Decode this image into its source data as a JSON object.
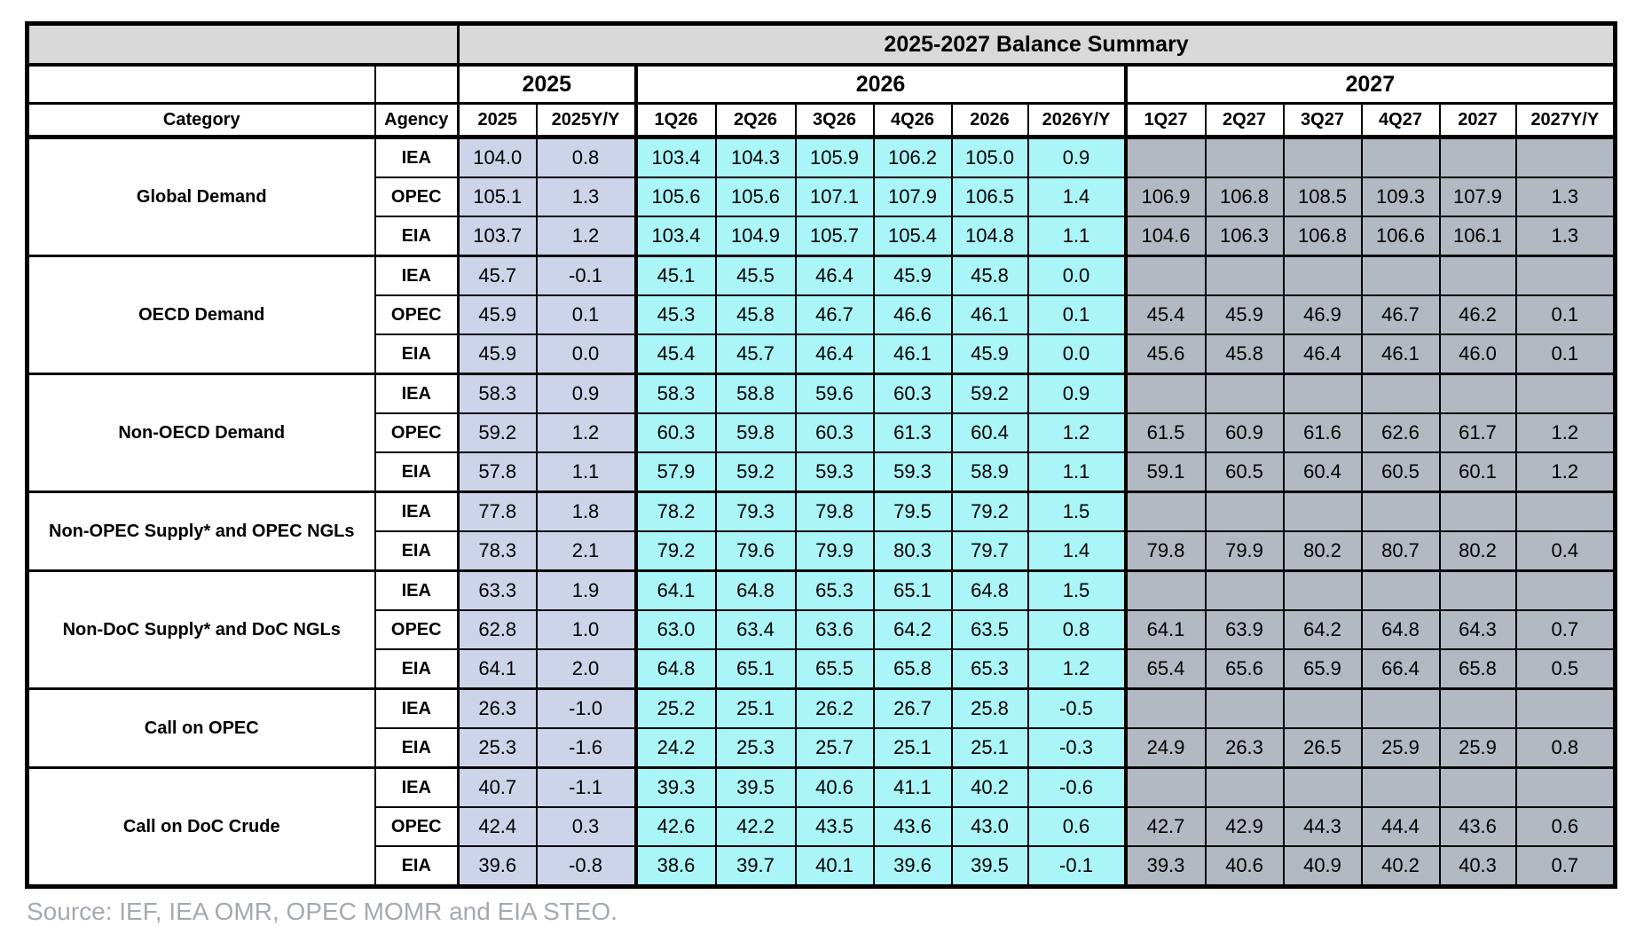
{
  "table": {
    "title": "2025-2027 Balance Summary",
    "year_groups": [
      {
        "label": "2025",
        "span": 2
      },
      {
        "label": "2026",
        "span": 6
      },
      {
        "label": "2027",
        "span": 6
      }
    ],
    "columns": [
      "Category",
      "Agency",
      "2025",
      "2025Y/Y",
      "1Q26",
      "2Q26",
      "3Q26",
      "4Q26",
      "2026",
      "2026Y/Y",
      "1Q27",
      "2Q27",
      "3Q27",
      "4Q27",
      "2027",
      "2027Y/Y"
    ],
    "groups": [
      {
        "category": "Global Demand",
        "rows": [
          {
            "agency": "IEA",
            "values": [
              "104.0",
              "0.8",
              "103.4",
              "104.3",
              "105.9",
              "106.2",
              "105.0",
              "0.9",
              "",
              "",
              "",
              "",
              "",
              ""
            ]
          },
          {
            "agency": "OPEC",
            "values": [
              "105.1",
              "1.3",
              "105.6",
              "105.6",
              "107.1",
              "107.9",
              "106.5",
              "1.4",
              "106.9",
              "106.8",
              "108.5",
              "109.3",
              "107.9",
              "1.3"
            ]
          },
          {
            "agency": "EIA",
            "values": [
              "103.7",
              "1.2",
              "103.4",
              "104.9",
              "105.7",
              "105.4",
              "104.8",
              "1.1",
              "104.6",
              "106.3",
              "106.8",
              "106.6",
              "106.1",
              "1.3"
            ]
          }
        ]
      },
      {
        "category": "OECD Demand",
        "rows": [
          {
            "agency": "IEA",
            "values": [
              "45.7",
              "-0.1",
              "45.1",
              "45.5",
              "46.4",
              "45.9",
              "45.8",
              "0.0",
              "",
              "",
              "",
              "",
              "",
              ""
            ]
          },
          {
            "agency": "OPEC",
            "values": [
              "45.9",
              "0.1",
              "45.3",
              "45.8",
              "46.7",
              "46.6",
              "46.1",
              "0.1",
              "45.4",
              "45.9",
              "46.9",
              "46.7",
              "46.2",
              "0.1"
            ]
          },
          {
            "agency": "EIA",
            "values": [
              "45.9",
              "0.0",
              "45.4",
              "45.7",
              "46.4",
              "46.1",
              "45.9",
              "0.0",
              "45.6",
              "45.8",
              "46.4",
              "46.1",
              "46.0",
              "0.1"
            ]
          }
        ]
      },
      {
        "category": "Non-OECD Demand",
        "rows": [
          {
            "agency": "IEA",
            "values": [
              "58.3",
              "0.9",
              "58.3",
              "58.8",
              "59.6",
              "60.3",
              "59.2",
              "0.9",
              "",
              "",
              "",
              "",
              "",
              ""
            ]
          },
          {
            "agency": "OPEC",
            "values": [
              "59.2",
              "1.2",
              "60.3",
              "59.8",
              "60.3",
              "61.3",
              "60.4",
              "1.2",
              "61.5",
              "60.9",
              "61.6",
              "62.6",
              "61.7",
              "1.2"
            ]
          },
          {
            "agency": "EIA",
            "values": [
              "57.8",
              "1.1",
              "57.9",
              "59.2",
              "59.3",
              "59.3",
              "58.9",
              "1.1",
              "59.1",
              "60.5",
              "60.4",
              "60.5",
              "60.1",
              "1.2"
            ]
          }
        ]
      },
      {
        "category": "Non-OPEC Supply* and OPEC NGLs",
        "rows": [
          {
            "agency": "IEA",
            "values": [
              "77.8",
              "1.8",
              "78.2",
              "79.3",
              "79.8",
              "79.5",
              "79.2",
              "1.5",
              "",
              "",
              "",
              "",
              "",
              ""
            ]
          },
          {
            "agency": "EIA",
            "values": [
              "78.3",
              "2.1",
              "79.2",
              "79.6",
              "79.9",
              "80.3",
              "79.7",
              "1.4",
              "79.8",
              "79.9",
              "80.2",
              "80.7",
              "80.2",
              "0.4"
            ]
          }
        ]
      },
      {
        "category": "Non-DoC Supply* and DoC NGLs",
        "rows": [
          {
            "agency": "IEA",
            "values": [
              "63.3",
              "1.9",
              "64.1",
              "64.8",
              "65.3",
              "65.1",
              "64.8",
              "1.5",
              "",
              "",
              "",
              "",
              "",
              ""
            ]
          },
          {
            "agency": "OPEC",
            "values": [
              "62.8",
              "1.0",
              "63.0",
              "63.4",
              "63.6",
              "64.2",
              "63.5",
              "0.8",
              "64.1",
              "63.9",
              "64.2",
              "64.8",
              "64.3",
              "0.7"
            ]
          },
          {
            "agency": "EIA",
            "values": [
              "64.1",
              "2.0",
              "64.8",
              "65.1",
              "65.5",
              "65.8",
              "65.3",
              "1.2",
              "65.4",
              "65.6",
              "65.9",
              "66.4",
              "65.8",
              "0.5"
            ]
          }
        ]
      },
      {
        "category": "Call on OPEC",
        "rows": [
          {
            "agency": "IEA",
            "values": [
              "26.3",
              "-1.0",
              "25.2",
              "25.1",
              "26.2",
              "26.7",
              "25.8",
              "-0.5",
              "",
              "",
              "",
              "",
              "",
              ""
            ]
          },
          {
            "agency": "EIA",
            "values": [
              "25.3",
              "-1.6",
              "24.2",
              "25.3",
              "25.7",
              "25.1",
              "25.1",
              "-0.3",
              "24.9",
              "26.3",
              "26.5",
              "25.9",
              "25.9",
              "0.8"
            ]
          }
        ]
      },
      {
        "category": "Call on DoC Crude",
        "rows": [
          {
            "agency": "IEA",
            "values": [
              "40.7",
              "-1.1",
              "39.3",
              "39.5",
              "40.6",
              "41.1",
              "40.2",
              "-0.6",
              "",
              "",
              "",
              "",
              "",
              ""
            ]
          },
          {
            "agency": "OPEC",
            "values": [
              "42.4",
              "0.3",
              "42.6",
              "42.2",
              "43.5",
              "43.6",
              "43.0",
              "0.6",
              "42.7",
              "42.9",
              "44.3",
              "44.4",
              "43.6",
              "0.6"
            ]
          },
          {
            "agency": "EIA",
            "values": [
              "39.6",
              "-0.8",
              "38.6",
              "39.7",
              "40.1",
              "39.6",
              "39.5",
              "-0.1",
              "39.3",
              "40.6",
              "40.9",
              "40.2",
              "40.3",
              "0.7"
            ]
          }
        ]
      }
    ]
  },
  "source": "Source: IEF, IEA OMR, OPEC MOMR and EIA STEO.",
  "colors": {
    "y2025_bg": "#cdd4e9",
    "y2026_bg": "#a9f5f7",
    "y2027_bg": "#b3b9c3",
    "title_bg": "#d9d9d9",
    "border": "#000000",
    "source_text": "#a4aab1"
  }
}
